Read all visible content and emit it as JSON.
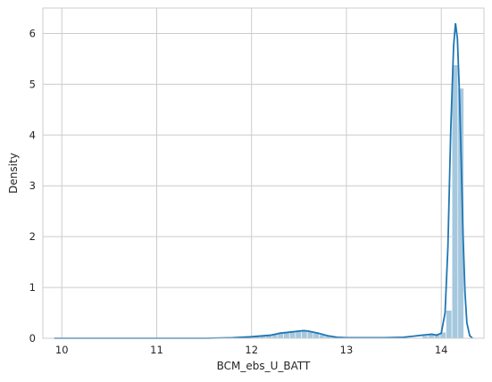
{
  "chart_data": {
    "type": "bar",
    "xlabel": "BCM_ebs_U_BATT",
    "ylabel": "Density",
    "xlim": [
      9.8,
      14.45
    ],
    "ylim": [
      0,
      6.5
    ],
    "x_ticks": [
      10,
      11,
      12,
      13,
      14
    ],
    "y_ticks": [
      0,
      1,
      2,
      3,
      4,
      5,
      6
    ],
    "grid": true,
    "colors": {
      "bars": "#a6c8df",
      "kde": "#1f77b4",
      "grid": "#cccccc",
      "frame": "#cccccc"
    },
    "histogram": {
      "bin_width": 0.0625,
      "bin_starts": [
        11.9,
        11.9625,
        12.025,
        12.0875,
        12.15,
        12.2125,
        12.275,
        12.3375,
        12.4,
        12.4625,
        12.525,
        12.5875,
        12.65,
        12.7125,
        12.775,
        12.8375,
        12.9,
        13.8,
        13.8625,
        13.925,
        13.9875,
        14.05,
        14.1125,
        14.175
      ],
      "values": [
        0.03,
        0.04,
        0.05,
        0.06,
        0.07,
        0.09,
        0.11,
        0.13,
        0.15,
        0.16,
        0.15,
        0.13,
        0.1,
        0.07,
        0.05,
        0.03,
        0.02,
        0.05,
        0.07,
        0.09,
        0.12,
        0.55,
        5.38,
        4.92
      ]
    },
    "kde": {
      "x": [
        9.92,
        10.5,
        11.0,
        11.5,
        11.8,
        12.0,
        12.2,
        12.3,
        12.4,
        12.5,
        12.55,
        12.6,
        12.7,
        12.8,
        12.9,
        13.0,
        13.2,
        13.4,
        13.6,
        13.7,
        13.8,
        13.85,
        13.9,
        13.95,
        14.0,
        14.04,
        14.07,
        14.1,
        14.13,
        14.15,
        14.17,
        14.19,
        14.21,
        14.23,
        14.25,
        14.27,
        14.3,
        14.33
      ],
      "y": [
        0.0,
        0.0,
        0.0,
        0.0,
        0.01,
        0.03,
        0.06,
        0.1,
        0.12,
        0.14,
        0.15,
        0.14,
        0.1,
        0.05,
        0.02,
        0.01,
        0.01,
        0.01,
        0.02,
        0.04,
        0.06,
        0.07,
        0.08,
        0.06,
        0.1,
        0.5,
        1.8,
        4.1,
        5.75,
        6.2,
        5.9,
        4.9,
        3.5,
        2.0,
        0.9,
        0.3,
        0.05,
        0.0
      ]
    }
  }
}
